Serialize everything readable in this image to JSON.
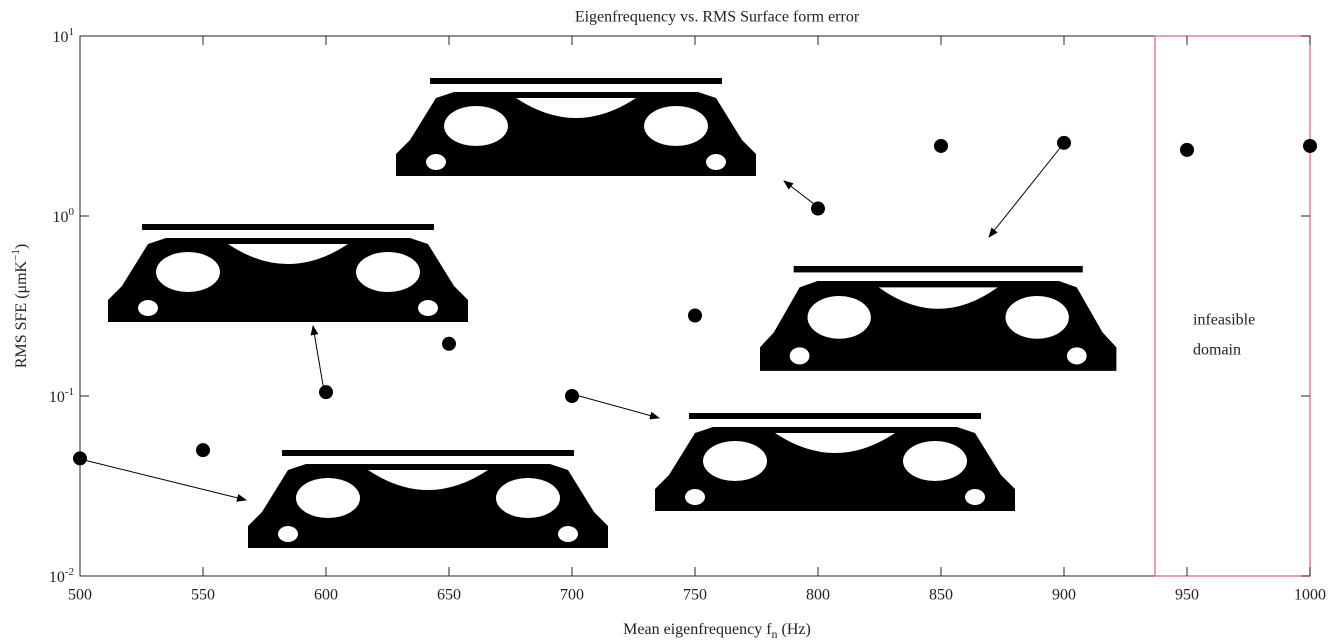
{
  "chart_data": {
    "type": "scatter",
    "title": "Eigenfrequency vs. RMS Surface form error",
    "x_label": "Mean eigenfrequency f_n (Hz)",
    "y_label": "RMS SFE (μmK^{−1})",
    "x": [
      500,
      550,
      600,
      650,
      700,
      750,
      800,
      850,
      900,
      950,
      1000
    ],
    "values": [
      0.045,
      0.05,
      0.105,
      0.195,
      0.1,
      0.28,
      1.1,
      2.45,
      2.55,
      2.33,
      2.45
    ],
    "color": "#000000",
    "y_log": true,
    "xlim": [
      500,
      1000
    ],
    "xticks": [
      500,
      550,
      600,
      650,
      700,
      750,
      800,
      850,
      900,
      950,
      1000
    ],
    "ylim": [
      0.01,
      10
    ],
    "yticks": [
      {
        "value": 0.01,
        "label": "10^{-2}"
      },
      {
        "value": 0.1,
        "label": "10^{-1}"
      },
      {
        "value": 1,
        "label": "10^{0}"
      },
      {
        "value": 10,
        "label": "10^{1}"
      }
    ],
    "infeasible_region": {
      "x_start": 937,
      "color": "#e06070",
      "label_lines": [
        "infeasible",
        "domain"
      ]
    }
  }
}
